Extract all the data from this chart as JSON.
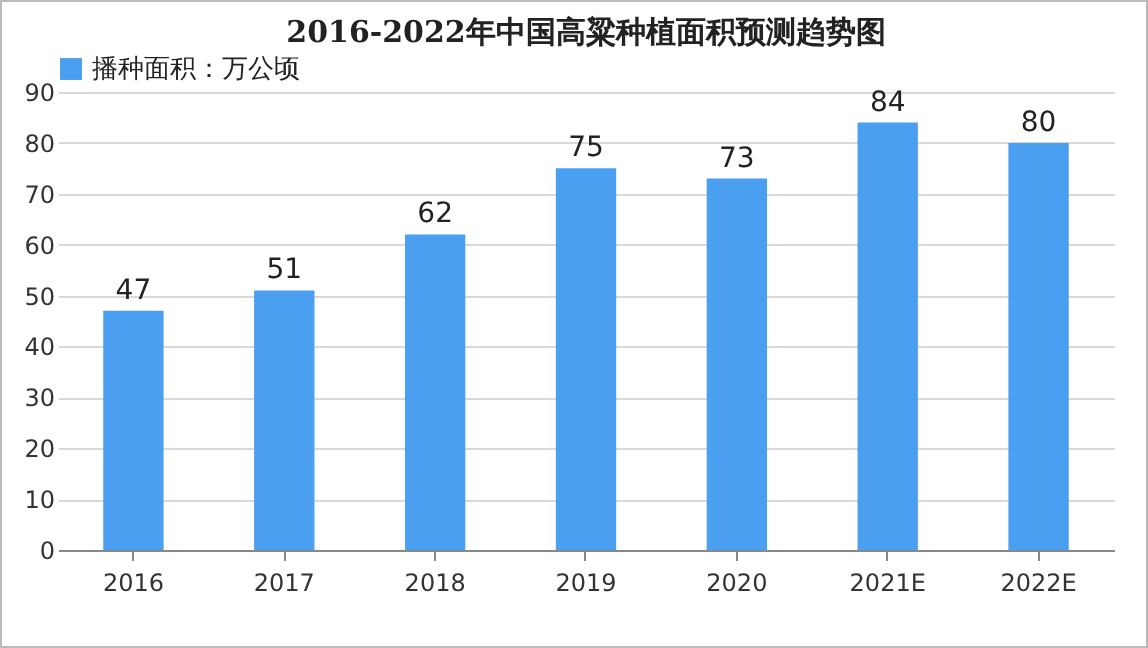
{
  "chart_data": {
    "type": "bar",
    "title": "2016-2022年中国高粱种植面积预测趋势图",
    "categories": [
      "2016",
      "2017",
      "2018",
      "2019",
      "2020",
      "2021E",
      "2022E"
    ],
    "series": [
      {
        "name": "播种面积：万公顷",
        "color": "#4a9ff0",
        "values": [
          47,
          51,
          62,
          75,
          73,
          84,
          80
        ]
      }
    ],
    "ylim": [
      0,
      90
    ],
    "yticks": [
      0,
      10,
      20,
      30,
      40,
      50,
      60,
      70,
      80,
      90
    ],
    "grid": "y",
    "legend": "top",
    "data_labels": true
  }
}
